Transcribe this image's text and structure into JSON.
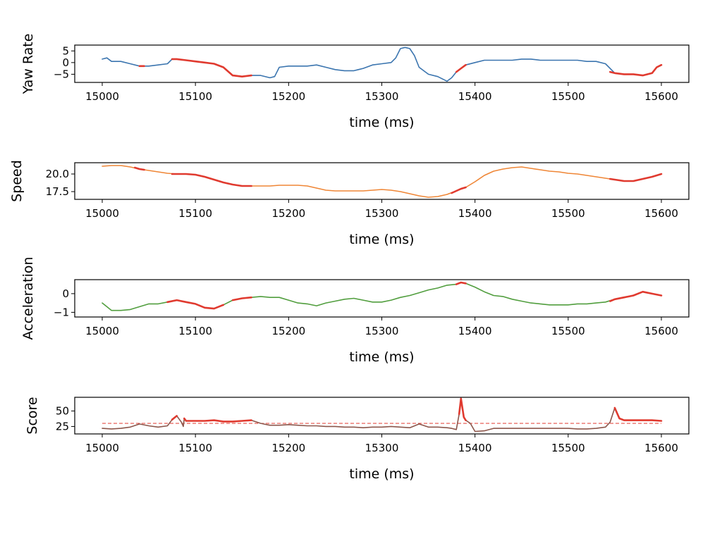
{
  "figure": {
    "colors": {
      "yaw": "#3b75af",
      "speed": "#ef8636",
      "accel": "#519e3e",
      "score": "#8c564b",
      "highlight": "#e03a2f"
    }
  },
  "chart_data": [
    {
      "type": "line",
      "xlabel": "time (ms)",
      "ylabel": "Yaw Rate",
      "xlim": [
        15000,
        15600
      ],
      "ylim": [
        -8.5,
        7.5
      ],
      "xticks": [
        15000,
        15100,
        15200,
        15300,
        15400,
        15500,
        15600
      ],
      "yticks": [
        5,
        0,
        -5
      ],
      "ytick_labels": [
        "5",
        "0",
        "−5"
      ],
      "color_key": "yaw",
      "series": [
        {
          "x": [
            15000,
            15005,
            15010,
            15020,
            15030,
            15040,
            15050,
            15060,
            15070,
            15075,
            15080,
            15090,
            15100,
            15110,
            15120,
            15130,
            15140,
            15150,
            15160,
            15170,
            15180,
            15185,
            15190,
            15200,
            15210,
            15220,
            15230,
            15240,
            15250,
            15260,
            15270,
            15280,
            15290,
            15300,
            15310,
            15315,
            15320,
            15325,
            15330,
            15335,
            15340,
            15350,
            15360,
            15370,
            15375,
            15380,
            15390,
            15400,
            15410,
            15420,
            15430,
            15440,
            15450,
            15460,
            15470,
            15480,
            15490,
            15500,
            15510,
            15520,
            15530,
            15540,
            15550,
            15560,
            15570,
            15580,
            15590,
            15595,
            15600
          ],
          "y": [
            1.5,
            2,
            0.5,
            0.5,
            -0.5,
            -1.5,
            -1.5,
            -1,
            -0.5,
            1.5,
            1.5,
            1,
            0.5,
            0,
            -0.5,
            -2,
            -5.5,
            -6,
            -5.5,
            -5.5,
            -6.5,
            -6,
            -2,
            -1.5,
            -1.5,
            -1.5,
            -1,
            -2,
            -3,
            -3.5,
            -3.5,
            -2.5,
            -1,
            -0.5,
            0,
            2,
            6,
            6.5,
            6,
            3,
            -2,
            -5,
            -6,
            -8,
            -6.5,
            -4,
            -1,
            0,
            1,
            1,
            1,
            1,
            1.5,
            1.5,
            1,
            1,
            1,
            1,
            1,
            0.5,
            0.5,
            -0.5,
            -4.5,
            -5,
            -5,
            -5.5,
            -4.5,
            -2,
            -1
          ]
        }
      ],
      "highlight_segments": [
        {
          "x": [
            15040,
            15045
          ],
          "y": [
            -1.5,
            -1.5
          ]
        },
        {
          "x": [
            15075,
            15080,
            15090,
            15100,
            15110,
            15120,
            15130,
            15140,
            15150,
            15160
          ],
          "y": [
            1.5,
            1.5,
            1,
            0.5,
            0,
            -0.5,
            -2,
            -5.5,
            -6,
            -5.5
          ]
        },
        {
          "x": [
            15380,
            15385,
            15390
          ],
          "y": [
            -4,
            -2.5,
            -1
          ]
        },
        {
          "x": [
            15545,
            15550,
            15560,
            15570,
            15580,
            15590,
            15595,
            15600
          ],
          "y": [
            -4,
            -4.5,
            -5,
            -5,
            -5.5,
            -4.5,
            -2,
            -1
          ]
        }
      ]
    },
    {
      "type": "line",
      "xlabel": "time (ms)",
      "ylabel": "Speed",
      "xlim": [
        15000,
        15600
      ],
      "ylim": [
        16.4,
        21.6
      ],
      "xticks": [
        15000,
        15100,
        15200,
        15300,
        15400,
        15500,
        15600
      ],
      "yticks": [
        20,
        17.5
      ],
      "ytick_labels": [
        "20.0",
        "17.5"
      ],
      "color_key": "speed",
      "series": [
        {
          "x": [
            15000,
            15010,
            15020,
            15030,
            15040,
            15050,
            15060,
            15070,
            15080,
            15090,
            15100,
            15110,
            15120,
            15130,
            15140,
            15150,
            15160,
            15170,
            15180,
            15190,
            15200,
            15210,
            15220,
            15230,
            15240,
            15250,
            15260,
            15270,
            15280,
            15290,
            15300,
            15310,
            15320,
            15330,
            15340,
            15350,
            15360,
            15370,
            15380,
            15390,
            15400,
            15410,
            15420,
            15430,
            15440,
            15450,
            15460,
            15470,
            15480,
            15490,
            15500,
            15510,
            15520,
            15530,
            15540,
            15550,
            15560,
            15570,
            15580,
            15590,
            15600
          ],
          "y": [
            21.1,
            21.2,
            21.2,
            21.0,
            20.7,
            20.5,
            20.3,
            20.1,
            20.0,
            20.0,
            19.9,
            19.6,
            19.2,
            18.8,
            18.5,
            18.3,
            18.3,
            18.3,
            18.3,
            18.4,
            18.4,
            18.4,
            18.3,
            18.0,
            17.7,
            17.6,
            17.6,
            17.6,
            17.6,
            17.7,
            17.8,
            17.7,
            17.5,
            17.2,
            16.9,
            16.7,
            16.8,
            17.1,
            17.6,
            18.1,
            18.9,
            19.8,
            20.4,
            20.7,
            20.9,
            21.0,
            20.8,
            20.6,
            20.4,
            20.3,
            20.1,
            20.0,
            19.8,
            19.6,
            19.4,
            19.2,
            19.0,
            19.0,
            19.3,
            19.6,
            20.0
          ]
        }
      ],
      "highlight_segments": [
        {
          "x": [
            15035,
            15040,
            15045
          ],
          "y": [
            20.9,
            20.7,
            20.6
          ]
        },
        {
          "x": [
            15075,
            15080,
            15090,
            15100,
            15110,
            15120,
            15130,
            15140,
            15150,
            15160
          ],
          "y": [
            20.0,
            20.0,
            20.0,
            19.9,
            19.6,
            19.2,
            18.8,
            18.5,
            18.3,
            18.3
          ]
        },
        {
          "x": [
            15375,
            15380,
            15385,
            15390
          ],
          "y": [
            17.3,
            17.6,
            17.9,
            18.1
          ]
        },
        {
          "x": [
            15545,
            15550,
            15560,
            15570,
            15580,
            15590,
            15600
          ],
          "y": [
            19.3,
            19.2,
            19.0,
            19.0,
            19.3,
            19.6,
            20.0
          ]
        }
      ]
    },
    {
      "type": "line",
      "xlabel": "time (ms)",
      "ylabel": "Acceleration",
      "xlim": [
        15000,
        15600
      ],
      "ylim": [
        -1.25,
        0.75
      ],
      "xticks": [
        15000,
        15100,
        15200,
        15300,
        15400,
        15500,
        15600
      ],
      "yticks": [
        0,
        -1
      ],
      "ytick_labels": [
        "0",
        "−1"
      ],
      "color_key": "accel",
      "series": [
        {
          "x": [
            15000,
            15005,
            15010,
            15020,
            15030,
            15040,
            15050,
            15060,
            15070,
            15080,
            15090,
            15100,
            15110,
            15120,
            15130,
            15140,
            15150,
            15160,
            15170,
            15180,
            15190,
            15200,
            15210,
            15220,
            15230,
            15240,
            15250,
            15260,
            15270,
            15280,
            15290,
            15300,
            15310,
            15320,
            15330,
            15340,
            15350,
            15360,
            15370,
            15380,
            15385,
            15390,
            15400,
            15410,
            15420,
            15430,
            15440,
            15450,
            15460,
            15470,
            15480,
            15490,
            15500,
            15510,
            15520,
            15530,
            15540,
            15550,
            15560,
            15570,
            15580,
            15590,
            15600
          ],
          "y": [
            -0.5,
            -0.7,
            -0.9,
            -0.9,
            -0.85,
            -0.7,
            -0.55,
            -0.55,
            -0.45,
            -0.35,
            -0.45,
            -0.55,
            -0.75,
            -0.8,
            -0.6,
            -0.35,
            -0.25,
            -0.2,
            -0.15,
            -0.2,
            -0.2,
            -0.35,
            -0.5,
            -0.55,
            -0.65,
            -0.5,
            -0.4,
            -0.3,
            -0.25,
            -0.35,
            -0.45,
            -0.45,
            -0.35,
            -0.2,
            -0.1,
            0.05,
            0.2,
            0.3,
            0.45,
            0.5,
            0.6,
            0.55,
            0.35,
            0.1,
            -0.1,
            -0.15,
            -0.3,
            -0.4,
            -0.5,
            -0.55,
            -0.6,
            -0.6,
            -0.6,
            -0.55,
            -0.55,
            -0.5,
            -0.45,
            -0.3,
            -0.2,
            -0.1,
            0.1,
            0.0,
            -0.1
          ]
        }
      ],
      "highlight_segments": [
        {
          "x": [
            15070,
            15080,
            15090,
            15100,
            15110,
            15120,
            15130
          ],
          "y": [
            -0.45,
            -0.35,
            -0.45,
            -0.55,
            -0.75,
            -0.8,
            -0.6
          ]
        },
        {
          "x": [
            15140,
            15150,
            15160
          ],
          "y": [
            -0.35,
            -0.25,
            -0.2
          ]
        },
        {
          "x": [
            15380,
            15385,
            15390
          ],
          "y": [
            0.5,
            0.6,
            0.55
          ]
        },
        {
          "x": [
            15545,
            15550,
            15560,
            15570,
            15580,
            15590,
            15600
          ],
          "y": [
            -0.4,
            -0.3,
            -0.2,
            -0.1,
            0.1,
            0.0,
            -0.1
          ]
        }
      ]
    },
    {
      "type": "line",
      "xlabel": "time (ms)",
      "ylabel": "Score",
      "xlim": [
        15000,
        15600
      ],
      "ylim": [
        13,
        72
      ],
      "xticks": [
        15000,
        15100,
        15200,
        15300,
        15400,
        15500,
        15600
      ],
      "yticks": [
        50,
        25
      ],
      "ytick_labels": [
        "50",
        "25"
      ],
      "color_key": "score",
      "threshold": 30,
      "series": [
        {
          "x": [
            15000,
            15010,
            15020,
            15030,
            15040,
            15050,
            15060,
            15070,
            15075,
            15080,
            15085,
            15087,
            15088,
            15090,
            15100,
            15110,
            15120,
            15130,
            15140,
            15150,
            15160,
            15170,
            15180,
            15190,
            15200,
            15210,
            15220,
            15230,
            15240,
            15250,
            15260,
            15270,
            15280,
            15290,
            15300,
            15310,
            15320,
            15330,
            15340,
            15350,
            15360,
            15370,
            15375,
            15380,
            15383,
            15385,
            15388,
            15390,
            15395,
            15400,
            15410,
            15420,
            15430,
            15440,
            15450,
            15460,
            15470,
            15480,
            15490,
            15500,
            15510,
            15520,
            15530,
            15540,
            15545,
            15550,
            15555,
            15560,
            15570,
            15580,
            15590,
            15600
          ],
          "y": [
            22,
            21,
            22,
            24,
            29,
            26,
            24,
            26,
            36,
            42,
            32,
            25,
            38,
            34,
            34,
            34,
            35,
            33,
            33,
            34,
            35,
            30,
            27,
            27,
            28,
            27,
            26,
            26,
            25,
            25,
            24,
            24,
            23,
            24,
            24,
            25,
            24,
            23,
            29,
            24,
            24,
            23,
            22,
            20,
            45,
            70,
            40,
            35,
            30,
            17,
            18,
            22,
            22,
            22,
            22,
            22,
            22,
            22,
            22,
            22,
            21,
            21,
            22,
            24,
            32,
            55,
            38,
            35,
            35,
            35,
            35,
            34
          ]
        }
      ],
      "highlight_segments": [
        {
          "x": [
            15075,
            15080
          ],
          "y": [
            36,
            42
          ]
        },
        {
          "x": [
            15088,
            15090,
            15100,
            15110,
            15120,
            15130,
            15140,
            15150,
            15160
          ],
          "y": [
            38,
            34,
            34,
            34,
            35,
            33,
            33,
            34,
            35
          ]
        },
        {
          "x": [
            15383,
            15385,
            15388,
            15390
          ],
          "y": [
            45,
            70,
            40,
            35
          ]
        },
        {
          "x": [
            15550,
            15555,
            15560,
            15570,
            15580,
            15590,
            15600
          ],
          "y": [
            55,
            38,
            35,
            35,
            35,
            35,
            34
          ]
        }
      ]
    }
  ]
}
